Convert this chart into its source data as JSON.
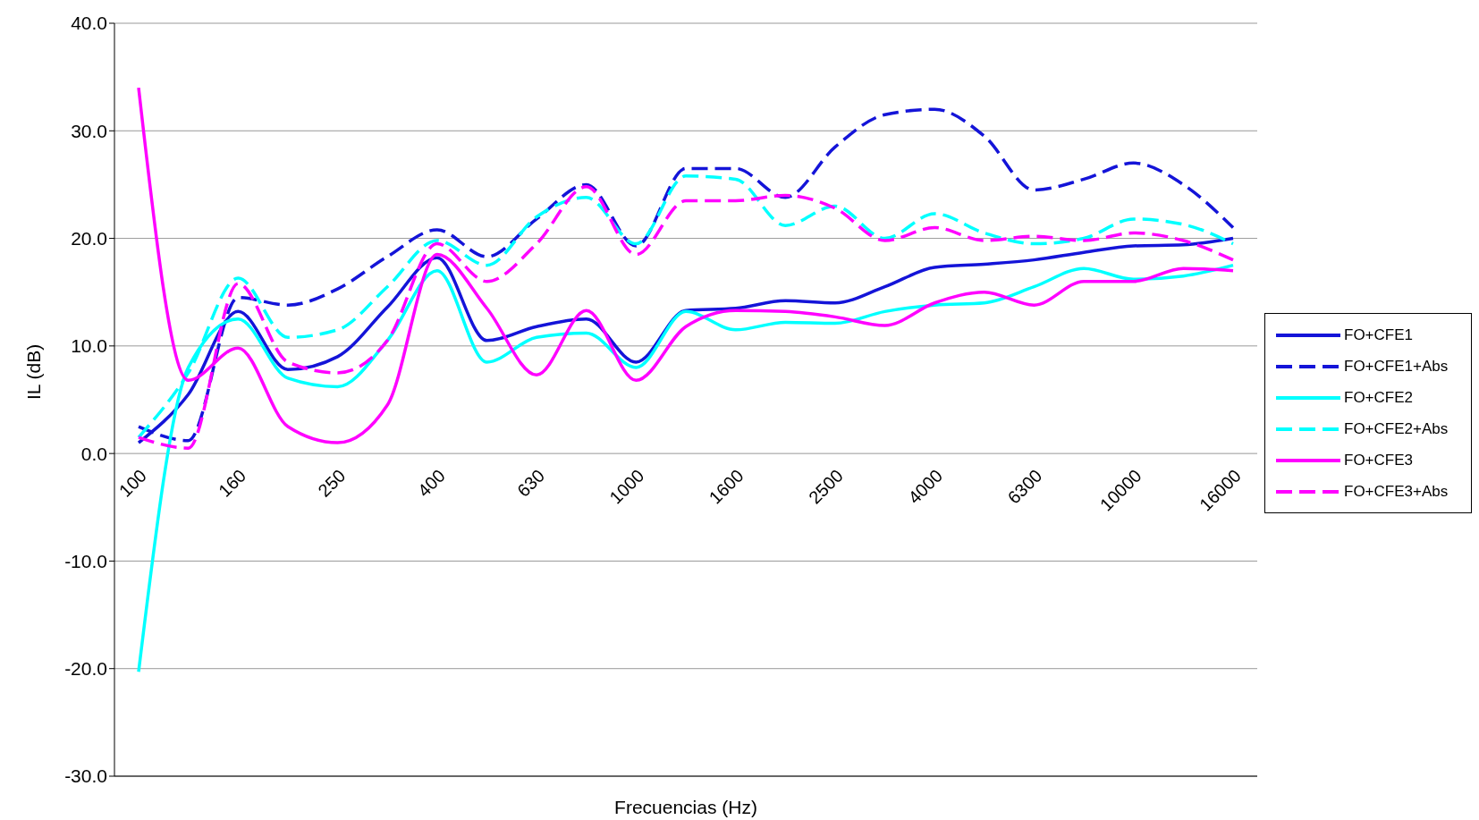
{
  "chart_data": {
    "type": "line",
    "xlabel": "Frecuencias (Hz)",
    "ylabel": "IL (dB)",
    "categories": [
      "100",
      null,
      "160",
      null,
      "250",
      null,
      "400",
      null,
      "630",
      null,
      "1000",
      null,
      "1600",
      null,
      "2500",
      null,
      "4000",
      null,
      "6300",
      null,
      "10000",
      null,
      "16000"
    ],
    "ylim": [
      -30,
      40
    ],
    "yticks": [
      {
        "value": -30,
        "label": "-30.0"
      },
      {
        "value": -20,
        "label": "-20.0"
      },
      {
        "value": -10,
        "label": "-10.0"
      },
      {
        "value": 0,
        "label": "0.0"
      },
      {
        "value": 10,
        "label": "10.0"
      },
      {
        "value": 20,
        "label": "20.0"
      },
      {
        "value": 30,
        "label": "30.0"
      },
      {
        "value": 40,
        "label": "40.0"
      }
    ],
    "grid": "y",
    "legend": "right",
    "marker": "none",
    "series": [
      {
        "name": "FO+CFE1",
        "color": "#1414d8",
        "line_style": "solid",
        "values": [
          1.0,
          5.5,
          13.2,
          7.8,
          9.0,
          13.6,
          18.2,
          10.5,
          11.8,
          12.5,
          8.5,
          13.3,
          13.5,
          14.2,
          14.0,
          15.5,
          17.3,
          17.6,
          18.0,
          18.7,
          19.3,
          19.4,
          20.0
        ]
      },
      {
        "name": "FO+CFE1+Abs",
        "color": "#1414d8",
        "line_style": "dashed",
        "values": [
          2.5,
          1.2,
          14.5,
          13.8,
          15.3,
          18.3,
          20.8,
          18.3,
          21.8,
          25.0,
          19.3,
          26.5,
          26.5,
          23.8,
          28.5,
          31.5,
          32.0,
          29.5,
          24.5,
          25.5,
          27.0,
          25.0,
          21.0
        ]
      },
      {
        "name": "FO+CFE2",
        "color": "#00ffff",
        "line_style": "solid",
        "values": [
          -20.3,
          8.0,
          12.5,
          7.0,
          6.2,
          10.5,
          17.0,
          8.5,
          10.8,
          11.2,
          8.0,
          13.2,
          11.5,
          12.2,
          12.1,
          13.2,
          13.8,
          14.0,
          15.5,
          17.2,
          16.2,
          16.5,
          17.5
        ]
      },
      {
        "name": "FO+CFE2+Abs",
        "color": "#00ffff",
        "line_style": "dashed",
        "values": [
          1.5,
          7.5,
          16.3,
          10.8,
          11.5,
          15.5,
          19.8,
          17.5,
          22.0,
          23.8,
          19.5,
          25.8,
          25.5,
          21.2,
          23.0,
          20.0,
          22.3,
          20.5,
          19.5,
          20.0,
          21.8,
          21.3,
          19.5
        ]
      },
      {
        "name": "FO+CFE3",
        "color": "#ff00ff",
        "line_style": "solid",
        "values": [
          34.0,
          6.8,
          9.8,
          2.5,
          1.0,
          4.5,
          18.5,
          13.5,
          7.3,
          13.3,
          6.8,
          11.8,
          13.3,
          13.2,
          12.7,
          11.9,
          14.0,
          15.0,
          13.8,
          16.0,
          16.0,
          17.2,
          17.0
        ]
      },
      {
        "name": "FO+CFE3+Abs",
        "color": "#ff00ff",
        "line_style": "dashed",
        "values": [
          1.5,
          0.5,
          15.8,
          8.5,
          7.5,
          10.5,
          19.5,
          16.0,
          19.5,
          24.8,
          18.5,
          23.5,
          23.5,
          24.0,
          22.8,
          19.8,
          21.0,
          19.8,
          20.2,
          19.8,
          20.5,
          19.8,
          18.0
        ]
      }
    ]
  }
}
